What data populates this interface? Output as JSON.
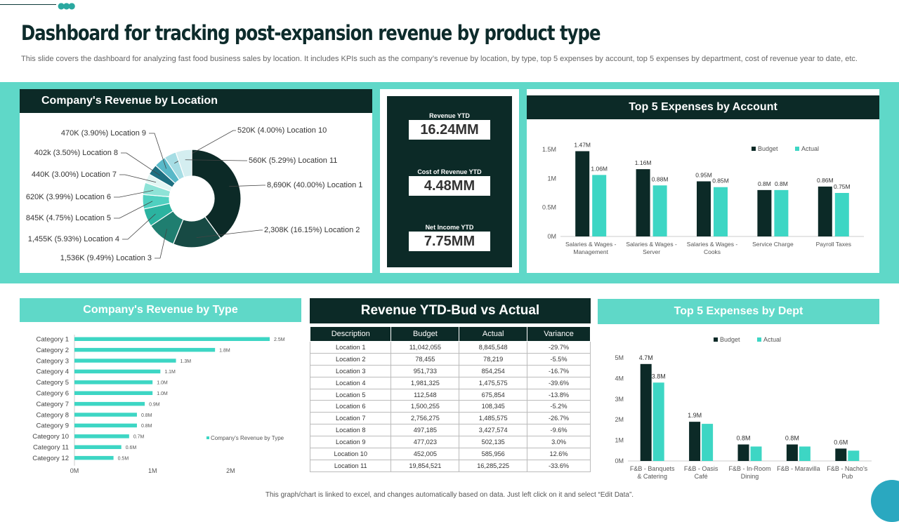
{
  "header": {
    "title": "Dashboard for tracking post-expansion revenue by product type",
    "subtitle": "This slide covers the dashboard for analyzing fast food business sales by location. It includes KPIs such as the company’s revenue by location, by type,  top 5 expenses by account, top 5 expenses by department, cost of revenue year to date, etc."
  },
  "colors": {
    "dark": "#0c2a27",
    "teal": "#5fd8c8",
    "accent": "#3dd6c4"
  },
  "kpis": [
    {
      "label": "Revenue YTD",
      "value": "16.24MM"
    },
    {
      "label": "Cost of Revenue YTD",
      "value": "4.48MM"
    },
    {
      "label": "Net Income YTD",
      "value": "7.75MM"
    }
  ],
  "table": {
    "title": "Revenue YTD-Bud vs Actual",
    "columns": [
      "Description",
      "Budget",
      "Actual",
      "Variance"
    ],
    "rows": [
      [
        "Location 1",
        "11,042,055",
        "8,845,548",
        "-29.7%"
      ],
      [
        "Location 2",
        "78,455",
        "78,219",
        "-5.5%"
      ],
      [
        "Location 3",
        "951,733",
        "854,254",
        "-16.7%"
      ],
      [
        "Location 4",
        "1,981,325",
        "1,475,575",
        "-39.6%"
      ],
      [
        "Location 5",
        "112,548",
        "675,854",
        "-13.8%"
      ],
      [
        "Location 6",
        "1,500,255",
        "108,345",
        "-5.2%"
      ],
      [
        "Location 7",
        "2,756,275",
        "1,485,575",
        "-26.7%"
      ],
      [
        "Location 8",
        "497,185",
        "3,427,574",
        "-9.6%"
      ],
      [
        "Location 9",
        "477,023",
        "502,135",
        "3.0%"
      ],
      [
        "Location 10",
        "452,005",
        "585,956",
        "12.6%"
      ],
      [
        "Location 11",
        "19,854,521",
        "16,285,225",
        "-33.6%"
      ]
    ]
  },
  "chart_data": [
    {
      "type": "pie",
      "title": "Company's Revenue by Location",
      "slices": [
        {
          "label": "8,690K (40.00%) Location 1",
          "value": 40.0,
          "color": "#0c2a27"
        },
        {
          "label": "2,308K (16.15%) Location 2",
          "value": 16.15,
          "color": "#174a44"
        },
        {
          "label": "1,536K (9.49%) Location 3",
          "value": 9.49,
          "color": "#1f7e70"
        },
        {
          "label": "1,455K (5.93%) Location 4",
          "value": 5.93,
          "color": "#2bb3a0"
        },
        {
          "label": "845K (4.75%) Location 5",
          "value": 4.75,
          "color": "#4fd0c0"
        },
        {
          "label": "620K (3.99%) Location 6",
          "value": 3.99,
          "color": "#8ee3d7"
        },
        {
          "label": "440K (3.00%) Location 7",
          "value": 3.0,
          "color": "#e2f6f3"
        },
        {
          "label": "402k (3.50%) Location 8",
          "value": 3.5,
          "color": "#1d6f80"
        },
        {
          "label": "470K (3.90%) Location 9",
          "value": 3.9,
          "color": "#58b8c8"
        },
        {
          "label": "520K (4.00%) Location 10",
          "value": 4.0,
          "color": "#a6dde4"
        },
        {
          "label": "560K (5.29%) Location 11",
          "value": 5.29,
          "color": "#d4eef0"
        }
      ]
    },
    {
      "type": "bar",
      "title": "Top 5 Expenses by Account",
      "categories": [
        "Salaries & Wages - Management",
        "Salaries & Wages - Server",
        "Salaries & Wages - Cooks",
        "Service Charge",
        "Payroll Taxes"
      ],
      "series": [
        {
          "name": "Budget",
          "values": [
            1.47,
            1.16,
            0.95,
            0.8,
            0.86
          ],
          "labels": [
            "1.47M",
            "1.16M",
            "0.95M",
            "0.8M",
            "0.86M"
          ],
          "color": "#0c2a27"
        },
        {
          "name": "Actual",
          "values": [
            1.06,
            0.88,
            0.85,
            0.8,
            0.75
          ],
          "labels": [
            "1.06M",
            "0.88M",
            "0.85M",
            "0.8M",
            "0.75M"
          ],
          "color": "#3dd6c4"
        }
      ],
      "yticks": [
        "0M",
        "0.5M",
        "1M",
        "1.5M"
      ],
      "ylim": [
        0,
        1.5
      ]
    },
    {
      "type": "bar",
      "orientation": "horizontal",
      "title": "Company's Revenue by Type",
      "categories": [
        "Category 1",
        "Category 2",
        "Category 3",
        "Category 4",
        "Category 5",
        "Category 6",
        "Category 7",
        "Category 8",
        "Category 9",
        "Category 10",
        "Category 11",
        "Category 12"
      ],
      "values": [
        2.5,
        1.8,
        1.3,
        1.1,
        1.0,
        1.0,
        0.9,
        0.8,
        0.8,
        0.7,
        0.6,
        0.5
      ],
      "labels": [
        "2.5M",
        "1.8M",
        "1.3M",
        "1.1M",
        "1.0M",
        "1.0M",
        "0.9M",
        "0.8M",
        "0.8M",
        "0.7M",
        "0.6M",
        "0.5M"
      ],
      "xticks": [
        "0M",
        "1M",
        "2M"
      ],
      "xlim": [
        0,
        2.5
      ],
      "legend": "Company's Revenue by Type",
      "color": "#3dd6c4"
    },
    {
      "type": "bar",
      "title": "Top 5 Expenses by Dept",
      "categories": [
        "F&B - Banquets & Catering",
        "F&B - Oasis Café",
        "F&B - In-Room Dining",
        "F&B - Maravilla",
        "F&B - Nacho's Pub"
      ],
      "series": [
        {
          "name": "Budget",
          "values": [
            4.7,
            1.9,
            0.8,
            0.8,
            0.6
          ],
          "labels": [
            "4.7M",
            "1.9M",
            "0.8M",
            "0.8M",
            "0.6M"
          ],
          "color": "#0c2a27"
        },
        {
          "name": "Actual",
          "values": [
            3.8,
            1.8,
            0.7,
            0.7,
            0.5
          ],
          "labels": [
            "3.8M",
            "",
            "",
            "",
            ""
          ],
          "color": "#3dd6c4"
        }
      ],
      "yticks": [
        "0M",
        "1M",
        "2M",
        "3M",
        "4M",
        "5M"
      ],
      "ylim": [
        0,
        5
      ]
    }
  ],
  "footnote": "This graph/chart is linked to excel, and changes automatically based on data. Just left click on it and select “Edit Data”."
}
